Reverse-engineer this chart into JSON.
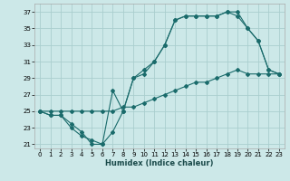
{
  "xlabel": "Humidex (Indice chaleur)",
  "bg_color": "#cce8e8",
  "grid_color": "#aacece",
  "line_color": "#1a6b6b",
  "xlim": [
    -0.5,
    23.5
  ],
  "ylim": [
    20.5,
    38.0
  ],
  "xticks": [
    0,
    1,
    2,
    3,
    4,
    5,
    6,
    7,
    8,
    9,
    10,
    11,
    12,
    13,
    14,
    15,
    16,
    17,
    18,
    19,
    20,
    21,
    22,
    23
  ],
  "yticks": [
    21,
    23,
    25,
    27,
    29,
    31,
    33,
    35,
    37
  ],
  "line1_x": [
    0,
    1,
    2,
    3,
    4,
    5,
    6,
    7,
    8,
    9,
    10,
    11,
    12,
    13,
    14,
    15,
    16,
    17,
    18,
    19,
    20,
    21,
    22,
    23
  ],
  "line1_y": [
    25,
    24.5,
    24.5,
    23.5,
    22.5,
    21,
    21,
    22.5,
    25,
    29,
    29.5,
    31,
    33,
    36,
    36.5,
    36.5,
    36.5,
    36.5,
    37,
    36.5,
    35,
    33.5,
    30,
    29.5
  ],
  "line2_x": [
    0,
    1,
    2,
    3,
    4,
    5,
    6,
    7,
    8,
    9,
    10,
    11,
    12,
    13,
    14,
    15,
    16,
    17,
    18,
    19,
    20,
    21,
    22,
    23
  ],
  "line2_y": [
    25,
    24.5,
    24.5,
    23,
    22,
    21.5,
    21,
    27.5,
    25,
    29,
    30,
    31,
    33,
    36,
    36.5,
    36.5,
    36.5,
    36.5,
    37,
    37,
    35,
    33.5,
    30,
    29.5
  ],
  "line3_x": [
    0,
    1,
    2,
    3,
    4,
    5,
    6,
    7,
    8,
    9,
    10,
    11,
    12,
    13,
    14,
    15,
    16,
    17,
    18,
    19,
    20,
    21,
    22,
    23
  ],
  "line3_y": [
    25,
    25,
    25,
    25,
    25,
    25,
    25,
    25,
    25.5,
    25.5,
    26,
    26.5,
    27,
    27.5,
    28,
    28.5,
    28.5,
    29,
    29.5,
    30,
    29.5,
    29.5,
    29.5,
    29.5
  ]
}
